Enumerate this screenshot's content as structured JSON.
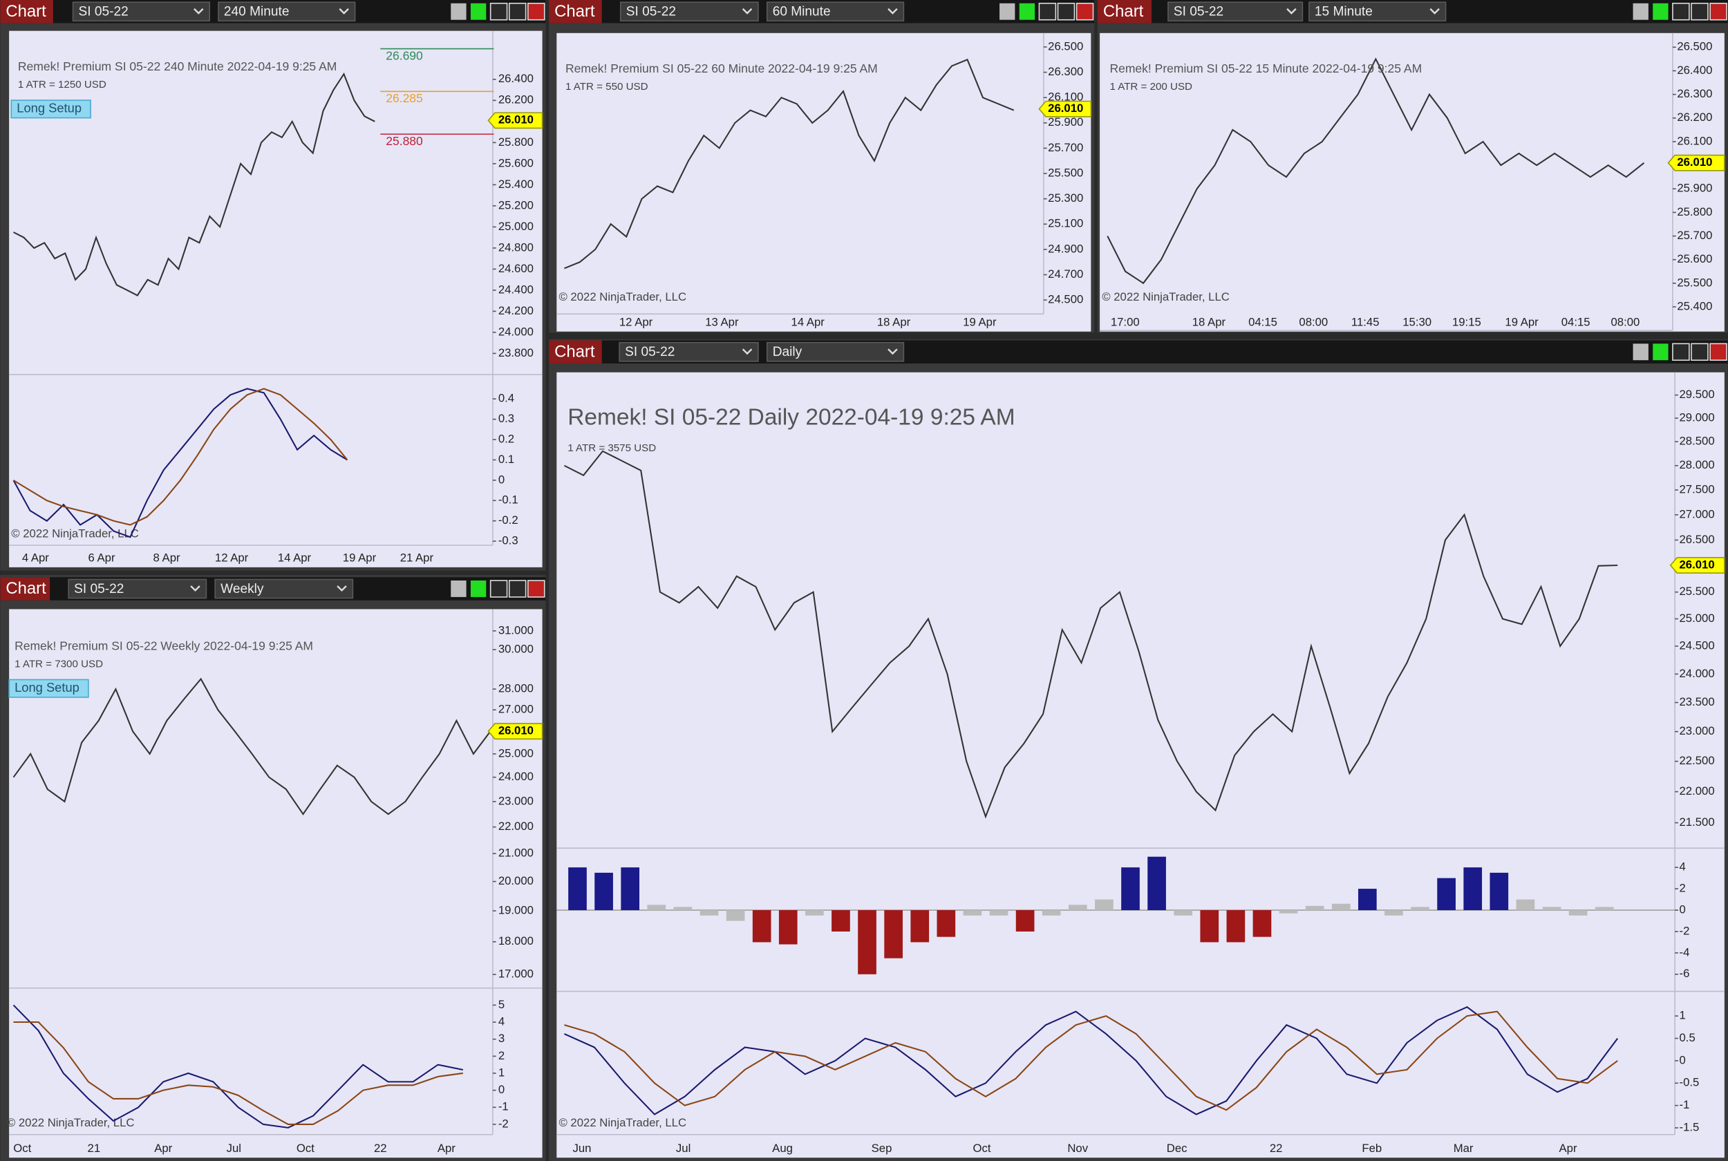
{
  "windows": [
    {
      "tab": "Chart",
      "instrument": "SI 05-22",
      "interval": "240 Minute",
      "title": "Remek!  Premium  SI 05-22  240 Minute  2022-04-19 9:25 AM",
      "atr": "1 ATR = 1250 USD",
      "setup": "Long Setup",
      "copyright": "© 2022 NinjaTrader, LLC",
      "line_color": "#333333",
      "ylim": [
        23.6,
        26.86
      ],
      "log_scale": false,
      "price_ticks": [
        {
          "value": 26.4,
          "label": "26.400"
        },
        {
          "value": 26.2,
          "label": "26.200"
        },
        {
          "value": 25.8,
          "label": "25.800"
        },
        {
          "value": 25.6,
          "label": "25.600"
        },
        {
          "value": 25.4,
          "label": "25.400"
        },
        {
          "value": 25.2,
          "label": "25.200"
        },
        {
          "value": 25.0,
          "label": "25.000"
        },
        {
          "value": 24.8,
          "label": "24.800"
        },
        {
          "value": 24.6,
          "label": "24.600"
        },
        {
          "value": 24.4,
          "label": "24.400"
        },
        {
          "value": 24.2,
          "label": "24.200"
        },
        {
          "value": 24.0,
          "label": "24.000"
        },
        {
          "value": 23.8,
          "label": "23.800"
        }
      ],
      "last_price": {
        "value": 26.01,
        "label": "26.010"
      },
      "levels": [
        {
          "value": 26.69,
          "label": "26.690",
          "color": "#2e8b57"
        },
        {
          "value": 26.285,
          "label": "26.285",
          "color": "#e8a030"
        },
        {
          "value": 25.88,
          "label": "25.880",
          "color": "#c0203a"
        }
      ],
      "close": [
        24.95,
        24.9,
        24.8,
        24.85,
        24.7,
        24.75,
        24.5,
        24.6,
        24.9,
        24.65,
        24.45,
        24.4,
        24.35,
        24.5,
        24.45,
        24.7,
        24.6,
        24.9,
        24.85,
        25.1,
        25.0,
        25.3,
        25.6,
        25.5,
        25.8,
        25.9,
        25.85,
        26.0,
        25.8,
        25.7,
        26.1,
        26.3,
        26.45,
        26.2,
        26.05,
        26.0
      ],
      "x_labels": [
        "4 Apr",
        "6 Apr",
        "8 Apr",
        "12 Apr",
        "14 Apr",
        "19 Apr",
        "21 Apr"
      ],
      "panels": [
        {
          "type": "line",
          "ylim": [
            -0.32,
            0.52
          ],
          "ticks": [
            0.4,
            0.3,
            0.2,
            0.1,
            0,
            -0.1,
            -0.2,
            -0.3
          ],
          "series": [
            {
              "color": "#1a1a6e",
              "values": [
                0.0,
                -0.15,
                -0.2,
                -0.12,
                -0.22,
                -0.17,
                -0.25,
                -0.28,
                -0.1,
                0.05,
                0.15,
                0.25,
                0.35,
                0.42,
                0.45,
                0.43,
                0.3,
                0.15,
                0.22,
                0.15,
                0.1
              ]
            },
            {
              "color": "#8b4513",
              "values": [
                0.0,
                -0.05,
                -0.1,
                -0.13,
                -0.15,
                -0.17,
                -0.2,
                -0.22,
                -0.18,
                -0.1,
                0.0,
                0.12,
                0.25,
                0.35,
                0.42,
                0.45,
                0.42,
                0.35,
                0.28,
                0.2,
                0.1
              ]
            }
          ]
        }
      ]
    },
    {
      "tab": "Chart",
      "instrument": "SI 05-22",
      "interval": "60 Minute",
      "title": "Remek!  Premium  SI 05-22  60 Minute  2022-04-19 9:25 AM",
      "atr": "1 ATR = 550 USD",
      "copyright": "© 2022 NinjaTrader, LLC",
      "line_color": "#333333",
      "ylim": [
        24.39,
        26.61
      ],
      "log_scale": false,
      "price_ticks": [
        {
          "value": 26.5,
          "label": "26.500"
        },
        {
          "value": 26.3,
          "label": "26.300"
        },
        {
          "value": 26.1,
          "label": "26.100"
        },
        {
          "value": 25.9,
          "label": "25.900"
        },
        {
          "value": 25.7,
          "label": "25.700"
        },
        {
          "value": 25.5,
          "label": "25.500"
        },
        {
          "value": 25.3,
          "label": "25.300"
        },
        {
          "value": 25.1,
          "label": "25.100"
        },
        {
          "value": 24.9,
          "label": "24.900"
        },
        {
          "value": 24.7,
          "label": "24.700"
        },
        {
          "value": 24.5,
          "label": "24.500"
        }
      ],
      "last_price": {
        "value": 26.01,
        "label": "26.010"
      },
      "close": [
        24.75,
        24.8,
        24.9,
        25.1,
        25.0,
        25.3,
        25.4,
        25.35,
        25.6,
        25.8,
        25.7,
        25.9,
        26.0,
        25.95,
        26.1,
        26.05,
        25.9,
        26.0,
        26.15,
        25.8,
        25.6,
        25.9,
        26.1,
        26.0,
        26.2,
        26.35,
        26.4,
        26.1,
        26.05,
        26.0
      ],
      "x_labels": [
        "12 Apr",
        "13 Apr",
        "14 Apr",
        "18 Apr",
        "19 Apr"
      ]
    },
    {
      "tab": "Chart",
      "instrument": "SI 05-22",
      "interval": "15 Minute",
      "title": "Remek!  Premium  SI 05-22  15 Minute  2022-04-19 9:25 AM",
      "atr": "1 ATR = 200 USD",
      "copyright": "© 2022 NinjaTrader, LLC",
      "line_color": "#333333",
      "ylim": [
        25.3,
        26.56
      ],
      "log_scale": false,
      "price_ticks": [
        {
          "value": 26.5,
          "label": "26.500"
        },
        {
          "value": 26.4,
          "label": "26.400"
        },
        {
          "value": 26.3,
          "label": "26.300"
        },
        {
          "value": 26.2,
          "label": "26.200"
        },
        {
          "value": 26.1,
          "label": "26.100"
        },
        {
          "value": 25.9,
          "label": "25.900"
        },
        {
          "value": 25.8,
          "label": "25.800"
        },
        {
          "value": 25.7,
          "label": "25.700"
        },
        {
          "value": 25.6,
          "label": "25.600"
        },
        {
          "value": 25.5,
          "label": "25.500"
        },
        {
          "value": 25.4,
          "label": "25.400"
        }
      ],
      "last_price": {
        "value": 26.01,
        "label": "26.010"
      },
      "close": [
        25.7,
        25.55,
        25.5,
        25.6,
        25.75,
        25.9,
        26.0,
        26.15,
        26.1,
        26.0,
        25.95,
        26.05,
        26.1,
        26.2,
        26.3,
        26.45,
        26.3,
        26.15,
        26.3,
        26.2,
        26.05,
        26.1,
        26.0,
        26.05,
        26.0,
        26.05,
        26.0,
        25.95,
        26.0,
        25.95,
        26.01
      ],
      "x_labels": [
        "17:00",
        "18 Apr",
        "04:15",
        "08:00",
        "11:45",
        "15:30",
        "19:15",
        "19 Apr",
        "04:15",
        "08:00"
      ]
    },
    {
      "tab": "Chart",
      "instrument": "SI 05-22",
      "interval": "Weekly",
      "title": "Remek!  Premium  SI 05-22  Weekly  2022-04-19 9:25 AM",
      "atr": "1 ATR = 7300 USD",
      "setup": "Long Setup",
      "copyright": "© 2022 NinjaTrader, LLC",
      "line_color": "#333333",
      "ylim": [
        16.6,
        32.2
      ],
      "log_scale": true,
      "price_ticks": [
        {
          "value": 31,
          "label": "31.000"
        },
        {
          "value": 30,
          "label": "30.000"
        },
        {
          "value": 28,
          "label": "28.000"
        },
        {
          "value": 27,
          "label": "27.000"
        },
        {
          "value": 25,
          "label": "25.000"
        },
        {
          "value": 24,
          "label": "24.000"
        },
        {
          "value": 23,
          "label": "23.000"
        },
        {
          "value": 22,
          "label": "22.000"
        },
        {
          "value": 21,
          "label": "21.000"
        },
        {
          "value": 20,
          "label": "20.000"
        },
        {
          "value": 19,
          "label": "19.000"
        },
        {
          "value": 18,
          "label": "18.000"
        },
        {
          "value": 17,
          "label": "17.000"
        }
      ],
      "last_price": {
        "value": 26.01,
        "label": "26.010"
      },
      "close": [
        24.0,
        25.0,
        23.5,
        23.0,
        25.5,
        26.5,
        28.0,
        26.0,
        25.0,
        26.5,
        27.5,
        28.5,
        27.0,
        26.0,
        25.0,
        24.0,
        23.5,
        22.5,
        23.5,
        24.5,
        24.0,
        23.0,
        22.5,
        23.0,
        24.0,
        25.0,
        26.5,
        25.0,
        26.01
      ],
      "x_labels": [
        "Oct",
        "21",
        "Apr",
        "Jul",
        "Oct",
        "22",
        "Apr"
      ],
      "panels": [
        {
          "type": "line",
          "ylim": [
            -2.6,
            6
          ],
          "ticks": [
            5,
            4,
            3,
            2,
            1,
            0,
            -1,
            -2
          ],
          "series": [
            {
              "color": "#1a1a6e",
              "values": [
                5,
                3.5,
                1,
                -0.5,
                -1.8,
                -1,
                0.5,
                1,
                0.5,
                -1,
                -2,
                -2.2,
                -1.5,
                0,
                1.5,
                0.5,
                0.5,
                1.5,
                1.2
              ]
            },
            {
              "color": "#8b4513",
              "values": [
                4,
                4,
                2.5,
                0.5,
                -0.5,
                -0.5,
                0,
                0.3,
                0.2,
                -0.3,
                -1.2,
                -2,
                -2,
                -1.2,
                0,
                0.3,
                0.3,
                0.8,
                1
              ]
            }
          ]
        }
      ]
    },
    {
      "tab": "Chart",
      "instrument": "SI 05-22",
      "interval": "Daily",
      "title": "Remek!  SI 05-22  Daily  2022-04-19 9:25 AM",
      "atr": "1 ATR = 3575 USD",
      "copyright": "© 2022 NinjaTrader, LLC",
      "line_color": "#333333",
      "ylim": [
        21.1,
        30
      ],
      "log_scale": true,
      "price_ticks": [
        {
          "value": 29.5,
          "label": "29.500"
        },
        {
          "value": 29,
          "label": "29.000"
        },
        {
          "value": 28.5,
          "label": "28.500"
        },
        {
          "value": 28,
          "label": "28.000"
        },
        {
          "value": 27.5,
          "label": "27.500"
        },
        {
          "value": 27,
          "label": "27.000"
        },
        {
          "value": 26.5,
          "label": "26.500"
        },
        {
          "value": 25.5,
          "label": "25.500"
        },
        {
          "value": 25,
          "label": "25.000"
        },
        {
          "value": 24.5,
          "label": "24.500"
        },
        {
          "value": 24,
          "label": "24.000"
        },
        {
          "value": 23.5,
          "label": "23.500"
        },
        {
          "value": 23,
          "label": "23.000"
        },
        {
          "value": 22.5,
          "label": "22.500"
        },
        {
          "value": 22,
          "label": "22.000"
        },
        {
          "value": 21.5,
          "label": "21.500"
        }
      ],
      "last_price": {
        "value": 26.01,
        "label": "26.010"
      },
      "close": [
        28.0,
        27.8,
        28.3,
        28.1,
        27.9,
        25.5,
        25.3,
        25.6,
        25.2,
        25.8,
        25.6,
        24.8,
        25.3,
        25.5,
        23.0,
        23.4,
        23.8,
        24.2,
        24.5,
        25.0,
        24.0,
        22.5,
        21.6,
        22.4,
        22.8,
        23.3,
        24.8,
        24.2,
        25.2,
        25.5,
        24.4,
        23.2,
        22.5,
        22.0,
        21.7,
        22.6,
        23.0,
        23.3,
        23.0,
        24.5,
        23.4,
        22.3,
        22.8,
        23.6,
        24.2,
        25.0,
        26.5,
        27.0,
        25.8,
        25.0,
        24.9,
        25.6,
        24.5,
        25.0,
        26.0,
        26.01
      ],
      "x_labels": [
        "Jun",
        "Jul",
        "Aug",
        "Sep",
        "Oct",
        "Nov",
        "Dec",
        "22",
        "Feb",
        "Mar",
        "Apr"
      ],
      "panels": [
        {
          "type": "histogram",
          "ylim": [
            -7.6,
            5.8
          ],
          "ticks": [
            4,
            2,
            0,
            -2,
            -4,
            -6
          ],
          "values": [
            4,
            3.5,
            4,
            0.5,
            0.3,
            -0.5,
            -1,
            -3,
            -3.2,
            -0.5,
            -2,
            -6,
            -4.5,
            -3,
            -2.5,
            -0.5,
            -0.5,
            -2,
            -0.5,
            0.5,
            1,
            4,
            5,
            -0.5,
            -3,
            -3,
            -2.5,
            -0.3,
            0.4,
            0.6,
            2,
            -0.5,
            0.3,
            3,
            4,
            3.5,
            1,
            0.3,
            -0.5,
            0.3
          ],
          "bar_colors": [
            "#1a1a8a",
            "#1a1a8a",
            "#1a1a8a",
            "#bbbbbb",
            "#bbbbbb",
            "#bbbbbb",
            "#bbbbbb",
            "#a01818",
            "#a01818",
            "#bbbbbb",
            "#a01818",
            "#a01818",
            "#a01818",
            "#a01818",
            "#a01818",
            "#bbbbbb",
            "#bbbbbb",
            "#a01818",
            "#bbbbbb",
            "#bbbbbb",
            "#bbbbbb",
            "#1a1a8a",
            "#1a1a8a",
            "#bbbbbb",
            "#a01818",
            "#a01818",
            "#a01818",
            "#bbbbbb",
            "#bbbbbb",
            "#bbbbbb",
            "#1a1a8a",
            "#bbbbbb",
            "#bbbbbb",
            "#1a1a8a",
            "#1a1a8a",
            "#1a1a8a",
            "#bbbbbb",
            "#bbbbbb",
            "#bbbbbb",
            "#bbbbbb"
          ]
        },
        {
          "type": "line",
          "ylim": [
            -1.65,
            1.55
          ],
          "ticks": [
            1,
            0.5,
            0,
            -0.5,
            -1,
            -1.5
          ],
          "series": [
            {
              "color": "#1a1a6e",
              "values": [
                0.6,
                0.3,
                -0.5,
                -1.2,
                -0.8,
                -0.2,
                0.3,
                0.2,
                -0.3,
                0,
                0.5,
                0.3,
                -0.2,
                -0.8,
                -0.5,
                0.2,
                0.8,
                1.1,
                0.6,
                0,
                -0.8,
                -1.2,
                -0.9,
                0,
                0.8,
                0.5,
                -0.3,
                -0.5,
                0.4,
                0.9,
                1.2,
                0.7,
                -0.3,
                -0.7,
                -0.4,
                0.5
              ]
            },
            {
              "color": "#8b4513",
              "values": [
                0.8,
                0.6,
                0.2,
                -0.5,
                -1,
                -0.8,
                -0.2,
                0.2,
                0.1,
                -0.2,
                0.1,
                0.4,
                0.2,
                -0.4,
                -0.8,
                -0.4,
                0.3,
                0.8,
                1,
                0.6,
                -0.1,
                -0.8,
                -1.1,
                -0.6,
                0.2,
                0.7,
                0.3,
                -0.3,
                -0.2,
                0.5,
                1,
                1.1,
                0.3,
                -0.4,
                -0.5,
                0
              ]
            }
          ]
        }
      ]
    }
  ]
}
